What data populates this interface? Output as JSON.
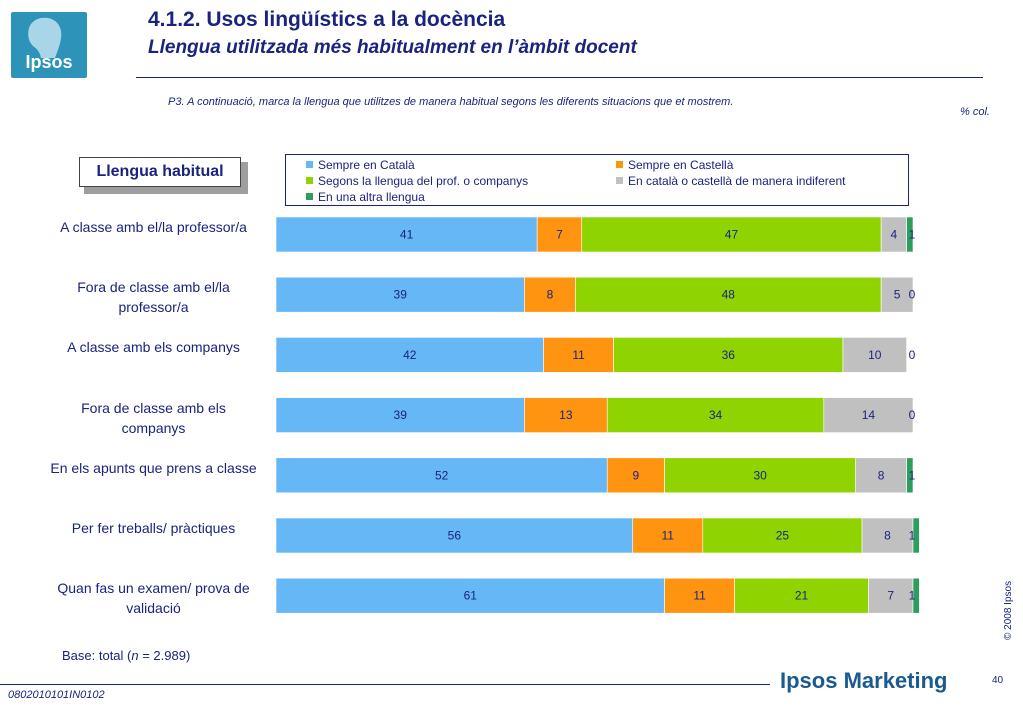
{
  "header": {
    "logo_text": "Ipsos",
    "title": "4.1.2. Usos lingüístics a la docència",
    "subtitle": "Llengua utilitzada més habitualment en l’àmbit docent",
    "question": "P3. A continuació, marca la llengua que utilitzes de manera habitual segons les diferents situacions que et mostrem.",
    "unit_note": "% col."
  },
  "chart_title_box": "Llengua habitual",
  "chart_data": {
    "type": "bar",
    "orientation": "horizontal",
    "stacked": true,
    "categories": [
      "A classe amb el/la professor/a",
      "Fora de classe amb el/la professor/a",
      "A classe amb els companys",
      "Fora de classe amb els companys",
      "En els apunts que prens a classe",
      "Per fer treballs/ pràctiques",
      "Quan fas un examen/ prova de validació"
    ],
    "series": [
      {
        "name": "Sempre en Català",
        "color": "#66b7f5",
        "values": [
          41,
          39,
          42,
          39,
          52,
          56,
          61
        ]
      },
      {
        "name": "Sempre en Castellà",
        "color": "#ff9411",
        "values": [
          7,
          8,
          11,
          13,
          9,
          11,
          11
        ]
      },
      {
        "name": "Segons la llengua del prof. o companys",
        "color": "#8fd400",
        "values": [
          47,
          48,
          36,
          34,
          30,
          25,
          21
        ]
      },
      {
        "name": "En català o castellà de manera indiferent",
        "color": "#c0c0c0",
        "values": [
          4,
          5,
          10,
          14,
          8,
          8,
          7
        ]
      },
      {
        "name": "En una altra llengua",
        "color": "#2e9e5e",
        "values": [
          1,
          0,
          0,
          0,
          1,
          1,
          1
        ]
      }
    ],
    "xlim": [
      0,
      100
    ],
    "legend_position": "top",
    "grid": false
  },
  "footer": {
    "base_prefix": "Base: total (",
    "base_n": "n",
    "base_suffix": " = 2.989)",
    "copyright": "© 2008 Ipsos",
    "page_number": "40",
    "doc_code": "0802010101IN0102",
    "brand": "Ipsos Marketing"
  }
}
